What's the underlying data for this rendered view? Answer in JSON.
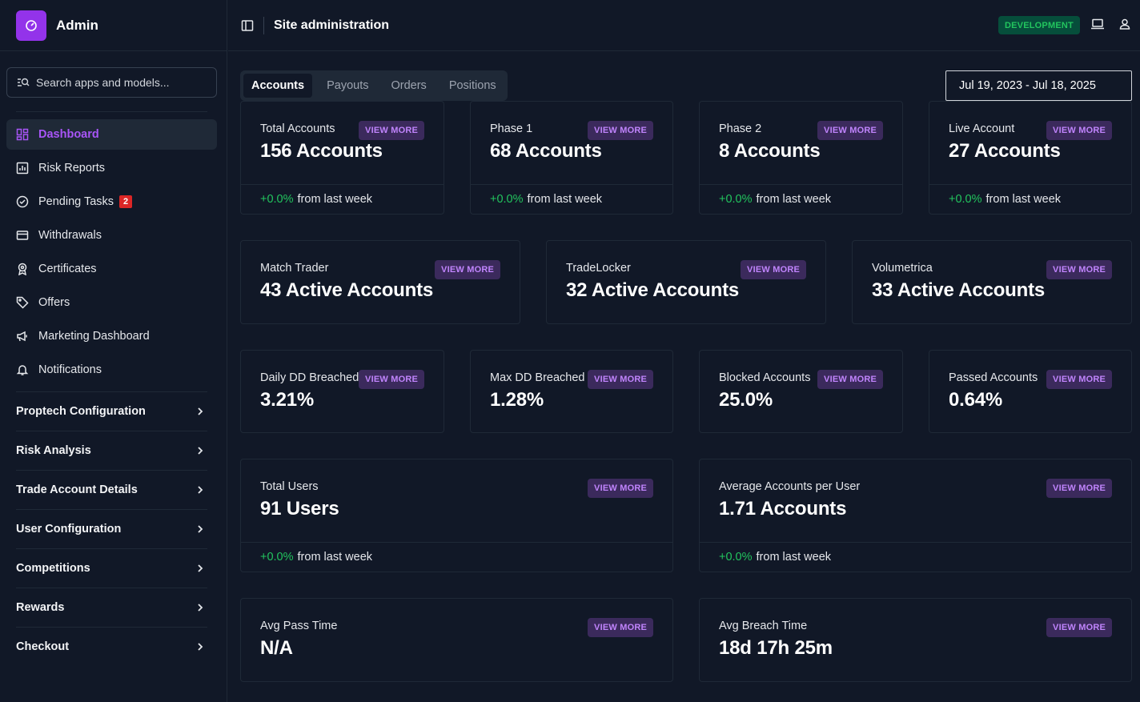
{
  "brand": {
    "title": "Admin"
  },
  "search": {
    "placeholder": "Search apps and models..."
  },
  "nav": [
    {
      "label": "Dashboard",
      "icon": "grid-icon",
      "active": true
    },
    {
      "label": "Risk Reports",
      "icon": "chart-icon"
    },
    {
      "label": "Pending Tasks",
      "icon": "check-circle-icon",
      "badge": "2"
    },
    {
      "label": "Withdrawals",
      "icon": "credit-card-icon"
    },
    {
      "label": "Certificates",
      "icon": "award-icon"
    },
    {
      "label": "Offers",
      "icon": "tag-icon"
    },
    {
      "label": "Marketing Dashboard",
      "icon": "megaphone-icon"
    },
    {
      "label": "Notifications",
      "icon": "bell-icon"
    }
  ],
  "groups": [
    {
      "label": "Proptech Configuration"
    },
    {
      "label": "Risk Analysis"
    },
    {
      "label": "Trade Account Details"
    },
    {
      "label": "User Configuration"
    },
    {
      "label": "Competitions"
    },
    {
      "label": "Rewards"
    },
    {
      "label": "Checkout"
    }
  ],
  "header": {
    "title": "Site administration",
    "env_badge": "DEVELOPMENT"
  },
  "tabs": [
    {
      "label": "Accounts",
      "active": true
    },
    {
      "label": "Payouts"
    },
    {
      "label": "Orders"
    },
    {
      "label": "Positions"
    }
  ],
  "date_range": "Jul 19, 2023 - Jul 18, 2025",
  "view_more_label": "VIEW MORE",
  "from_last_week": "from last week",
  "cards": {
    "total_accounts": {
      "label": "Total Accounts",
      "value": "156 Accounts",
      "change": "+0.0%"
    },
    "phase1": {
      "label": "Phase 1",
      "value": "68 Accounts",
      "change": "+0.0%"
    },
    "phase2": {
      "label": "Phase 2",
      "value": "8 Accounts",
      "change": "+0.0%"
    },
    "live": {
      "label": "Live Account",
      "value": "27 Accounts",
      "change": "+0.0%"
    },
    "match_trader": {
      "label": "Match Trader",
      "value": "43 Active Accounts"
    },
    "tradelocker": {
      "label": "TradeLocker",
      "value": "32 Active Accounts"
    },
    "volumetrica": {
      "label": "Volumetrica",
      "value": "33 Active Accounts"
    },
    "daily_dd": {
      "label": "Daily DD Breached",
      "value": "3.21%"
    },
    "max_dd": {
      "label": "Max DD Breached",
      "value": "1.28%"
    },
    "blocked": {
      "label": "Blocked Accounts",
      "value": "25.0%"
    },
    "passed": {
      "label": "Passed Accounts",
      "value": "0.64%"
    },
    "total_users": {
      "label": "Total Users",
      "value": "91 Users",
      "change": "+0.0%"
    },
    "avg_accounts": {
      "label": "Average Accounts per User",
      "value": "1.71 Accounts",
      "change": "+0.0%"
    },
    "avg_pass": {
      "label": "Avg Pass Time",
      "value": "N/A"
    },
    "avg_breach": {
      "label": "Avg Breach Time",
      "value": "18d 17h 25m"
    }
  },
  "colors": {
    "accent": "#a855f7",
    "positive": "#22c55e",
    "background": "#111827"
  }
}
